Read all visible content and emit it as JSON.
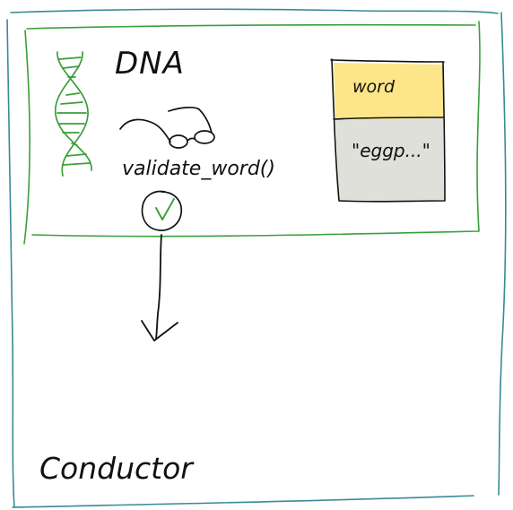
{
  "conductor": {
    "title": "Conductor",
    "border_color": "#3a8a96"
  },
  "dna": {
    "title": "DNA",
    "border_color": "#3aa03a",
    "icon": "dna-helix-icon",
    "method": {
      "label": "validate_word()",
      "icon": "eyeglasses-icon",
      "status_icon": "checkmark-circle-icon",
      "status_color": "#3aa03a"
    },
    "variable_card": {
      "name": "word",
      "value": "\"eggp...\"",
      "header_color": "#fde68a",
      "body_color": "#e0e0da"
    }
  },
  "flow": {
    "arrow_icon": "down-arrow-icon"
  }
}
